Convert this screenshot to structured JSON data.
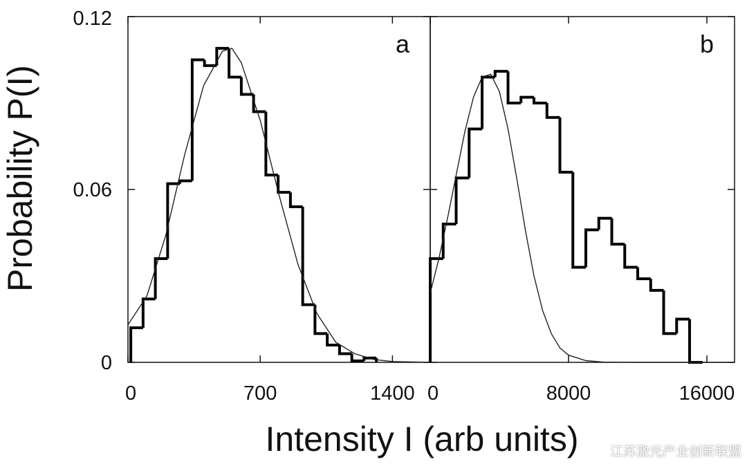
{
  "chart_data": {
    "type": "step",
    "ylabel": "Probability P(I)",
    "xlabel": "Intensity I (arb units)",
    "ylim": [
      0,
      0.12
    ],
    "yticks": [
      "0",
      "0.06",
      "0.12"
    ],
    "panels": [
      {
        "label": "a",
        "xlim": [
          0,
          1600
        ],
        "xticks": [
          0,
          700,
          1400
        ],
        "xtick_labels": [
          "0",
          "700",
          "1400"
        ],
        "histogram": {
          "bin_width": 65,
          "bin_starts": [
            15,
            80,
            145,
            210,
            275,
            340,
            405,
            470,
            535,
            600,
            665,
            730,
            795,
            860,
            925,
            990,
            1055,
            1120,
            1185,
            1250
          ],
          "values": [
            0.012,
            0.022,
            0.036,
            0.062,
            0.063,
            0.105,
            0.103,
            0.109,
            0.099,
            0.093,
            0.087,
            0.065,
            0.059,
            0.054,
            0.02,
            0.01,
            0.006,
            0.003,
            0.0005,
            0.0015
          ]
        },
        "fit_curve": {
          "x": [
            0,
            100,
            200,
            300,
            400,
            500,
            550,
            600,
            700,
            800,
            900,
            1000,
            1100,
            1200,
            1300,
            1400,
            1600
          ],
          "y": [
            0.013,
            0.023,
            0.044,
            0.072,
            0.096,
            0.108,
            0.109,
            0.104,
            0.084,
            0.058,
            0.034,
            0.017,
            0.007,
            0.003,
            0.001,
            0.0003,
            0.0
          ]
        }
      },
      {
        "label": "b",
        "xlim": [
          0,
          17600
        ],
        "xticks": [
          0,
          8000,
          16000
        ],
        "xtick_labels": [
          "0",
          "8000",
          "16000"
        ],
        "histogram": {
          "bin_width": 750,
          "bin_starts": [
            0,
            750,
            1500,
            2250,
            3000,
            3750,
            4500,
            5250,
            6000,
            6750,
            7500,
            8250,
            9000,
            9750,
            10500,
            11250,
            12000,
            12750,
            13500,
            14250,
            15000
          ],
          "values": [
            0.036,
            0.048,
            0.064,
            0.081,
            0.099,
            0.101,
            0.09,
            0.092,
            0.09,
            0.085,
            0.066,
            0.033,
            0.046,
            0.05,
            0.041,
            0.033,
            0.029,
            0.025,
            0.01,
            0.015,
            0.0
          ]
        },
        "fit_curve": {
          "x": [
            0,
            500,
            1000,
            1500,
            2000,
            2500,
            3000,
            3500,
            4000,
            4500,
            5000,
            5500,
            6000,
            6500,
            7000,
            7500,
            8000,
            9000,
            10000,
            12000,
            17600
          ],
          "y": [
            0.024,
            0.036,
            0.05,
            0.065,
            0.08,
            0.092,
            0.099,
            0.1,
            0.094,
            0.081,
            0.064,
            0.046,
            0.03,
            0.018,
            0.01,
            0.005,
            0.0025,
            0.0006,
            0.0001,
            0.0,
            0.0
          ]
        }
      }
    ]
  },
  "watermark": "江苏激光产业创新联盟"
}
